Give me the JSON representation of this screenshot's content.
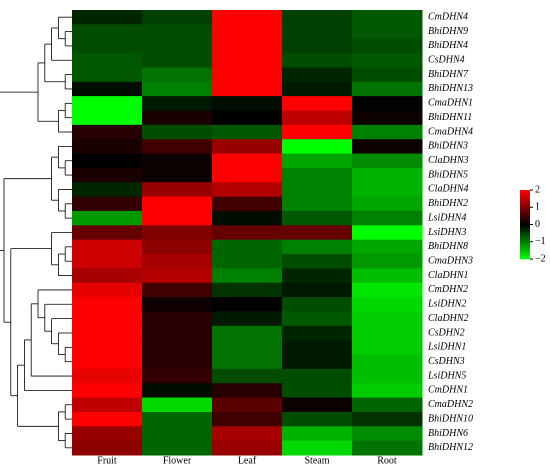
{
  "chart_data": {
    "type": "heatmap",
    "x_categories": [
      "Fruit",
      "Flower",
      "Leaf",
      "Steam",
      "Root"
    ],
    "y_categories": [
      "CmDHN4",
      "BhiDHN9",
      "BhiDHN4",
      "CsDHN4",
      "BhiDHN7",
      "BhiDHN13",
      "CmaDHN1",
      "BhiDHN11",
      "CmaDHN4",
      "BhiDHN3",
      "ClaDHN3",
      "BhiDHN5",
      "ClaDHN4",
      "BhiDHN2",
      "LsiDHN4",
      "LsiDHN3",
      "BhiDHN8",
      "CmaDHN3",
      "ClaDHN1",
      "CmDHN2",
      "LsiDHN2",
      "ClaDHN2",
      "CsDHN2",
      "LsiDHN1",
      "CsDHN3",
      "LsiDHN5",
      "CmDHN1",
      "CmaDHN2",
      "BhiDHN10",
      "BhiDHN6",
      "BhiDHN12"
    ],
    "values": [
      [
        -0.3,
        -0.5,
        2,
        -0.5,
        -0.7
      ],
      [
        -0.6,
        -0.6,
        2,
        -0.5,
        -0.7
      ],
      [
        -0.6,
        -0.6,
        2,
        -0.5,
        -0.6
      ],
      [
        -0.7,
        -0.6,
        2,
        -0.6,
        -0.7
      ],
      [
        -0.7,
        -0.9,
        2,
        -0.3,
        -0.6
      ],
      [
        -0.1,
        -1.0,
        2,
        -0.2,
        -0.9
      ],
      [
        -2,
        -0.2,
        -0.1,
        2,
        0
      ],
      [
        -2,
        0.2,
        0,
        1.5,
        0.1
      ],
      [
        0.3,
        -0.6,
        -0.7,
        2,
        -1.0
      ],
      [
        0.2,
        0.5,
        1.2,
        -2,
        0.1
      ],
      [
        0,
        0.1,
        2,
        -1.3,
        -1.1
      ],
      [
        0.2,
        0.1,
        2,
        -1.0,
        -1.4
      ],
      [
        -0.3,
        1.2,
        1.4,
        -1.0,
        -1.4
      ],
      [
        0.4,
        2,
        0.5,
        -1.0,
        -1.3
      ],
      [
        -1.2,
        2,
        -0.1,
        -0.7,
        -1.0
      ],
      [
        0.8,
        1.0,
        0.8,
        0.8,
        -2
      ],
      [
        1.6,
        1.1,
        -0.8,
        -1.0,
        -1.3
      ],
      [
        1.6,
        1.3,
        -0.8,
        -0.6,
        -1.2
      ],
      [
        1.3,
        1.4,
        -1.0,
        -0.3,
        -1.5
      ],
      [
        1.8,
        0.5,
        -0.4,
        -0.2,
        -1.8
      ],
      [
        2,
        0.1,
        0,
        -0.6,
        -1.7
      ],
      [
        2,
        0.3,
        -0.2,
        -0.7,
        -1.6
      ],
      [
        2,
        0.3,
        -0.9,
        -0.3,
        -1.6
      ],
      [
        2,
        0.3,
        -0.9,
        -0.2,
        -1.6
      ],
      [
        2,
        0.3,
        -0.9,
        -0.2,
        -1.5
      ],
      [
        1.8,
        0.4,
        -0.6,
        -0.6,
        -1.5
      ],
      [
        2,
        -0.1,
        0.3,
        -0.6,
        -1.6
      ],
      [
        1.5,
        -1.7,
        0.7,
        0.1,
        -0.8
      ],
      [
        2,
        -0.8,
        0.5,
        -0.6,
        -0.4
      ],
      [
        1.2,
        -0.8,
        1.3,
        -1.4,
        -1.1
      ],
      [
        1.1,
        -0.8,
        1.2,
        -1.7,
        -0.9
      ]
    ],
    "colors": {
      "low": "#00ff00",
      "mid": "#000000",
      "high": "#ff0000"
    },
    "zlim": [
      -2,
      2
    ],
    "zticks": [
      2,
      1,
      0,
      {
        "value": -1,
        "label": "−1"
      },
      {
        "value": -2,
        "label": "−2"
      }
    ]
  }
}
